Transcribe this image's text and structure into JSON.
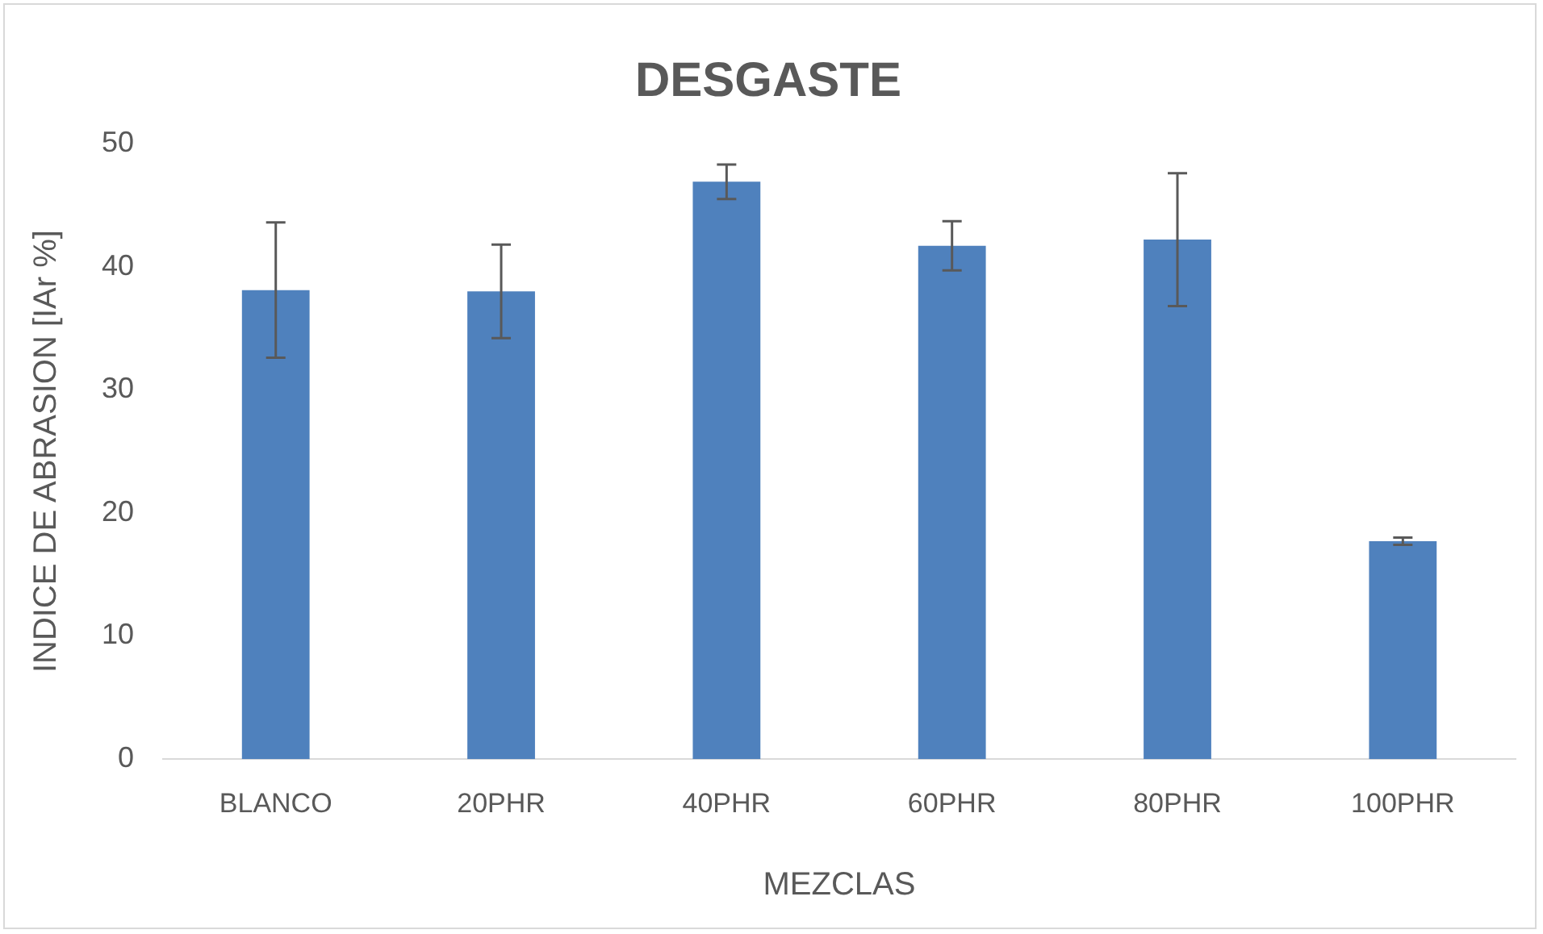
{
  "chart_data": {
    "type": "bar",
    "title": "DESGASTE",
    "xlabel": "MEZCLAS",
    "ylabel": "INDICE DE ABRASION [IAr %]",
    "categories": [
      "BLANCO",
      "20PHR",
      "40PHR",
      "60PHR",
      "80PHR",
      "100PHR"
    ],
    "values": [
      38.1,
      38.0,
      46.9,
      41.7,
      42.2,
      17.7
    ],
    "errors": [
      5.5,
      3.8,
      1.4,
      2.0,
      5.4,
      0.3
    ],
    "color": "#4f81bd",
    "ylim": [
      0,
      50
    ],
    "yticks": [
      0,
      10,
      20,
      30,
      40,
      50
    ],
    "grid": false,
    "legend": false
  }
}
